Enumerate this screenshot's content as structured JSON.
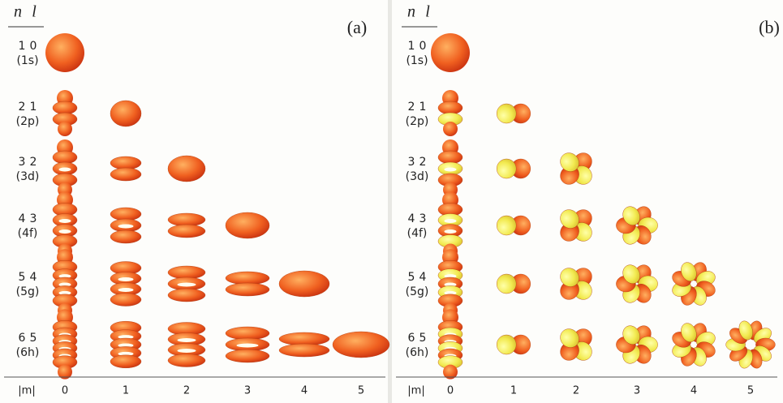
{
  "panels": [
    {
      "label": "(a)"
    },
    {
      "label": "(b)"
    }
  ],
  "header": {
    "n": "n",
    "l": "l"
  },
  "rows": [
    {
      "n": "1",
      "l": "0",
      "name": "(1s)"
    },
    {
      "n": "2",
      "l": "1",
      "name": "(2p)"
    },
    {
      "n": "3",
      "l": "2",
      "name": "(3d)"
    },
    {
      "n": "4",
      "l": "3",
      "name": "(4f)"
    },
    {
      "n": "5",
      "l": "4",
      "name": "(5g)"
    },
    {
      "n": "6",
      "l": "5",
      "name": "(6h)"
    }
  ],
  "m_axis": {
    "label": "|m|",
    "values": [
      "0",
      "1",
      "2",
      "3",
      "4",
      "5"
    ]
  }
}
